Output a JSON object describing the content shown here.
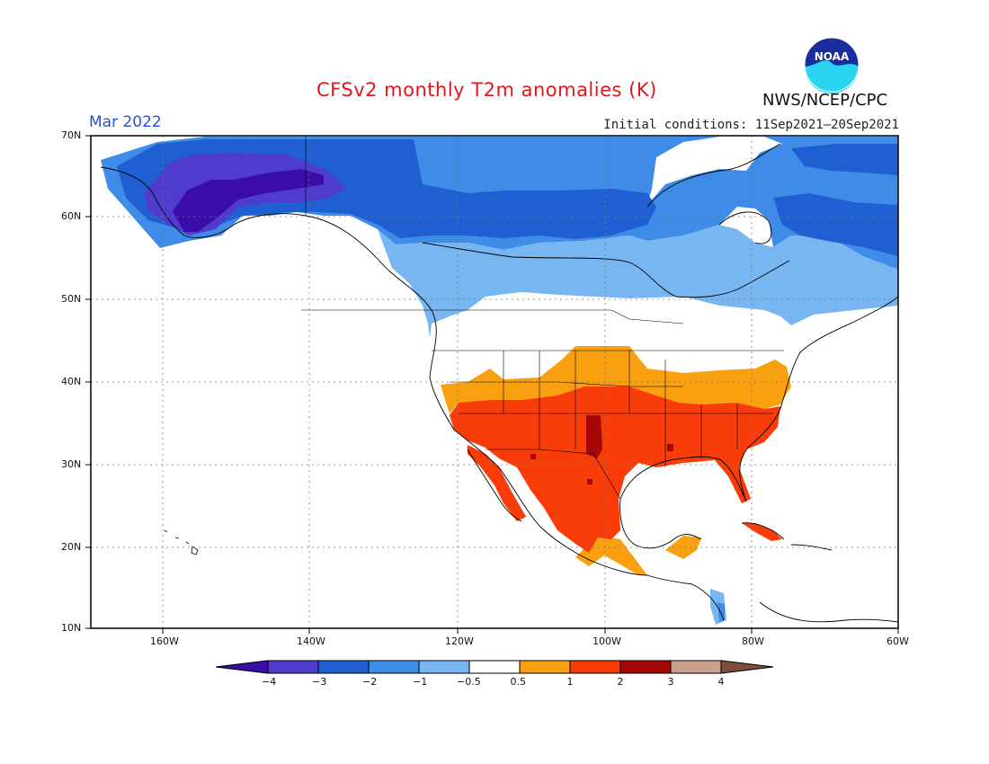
{
  "header": {
    "title": "CFSv2 monthly T2m anomalies (K)",
    "period": "Mar 2022",
    "initial_conditions": "Initial conditions: 11Sep2021–20Sep2021",
    "agency": "NWS/NCEP/CPC",
    "logo_text": "NOAA"
  },
  "axes": {
    "lat_labels": [
      "70N",
      "60N",
      "50N",
      "40N",
      "30N",
      "20N",
      "10N"
    ],
    "lon_labels": [
      "160W",
      "140W",
      "120W",
      "100W",
      "80W",
      "60W"
    ]
  },
  "legend": {
    "labels": [
      "−4",
      "−3",
      "−2",
      "−1",
      "−0.5",
      "0.5",
      "1",
      "2",
      "3",
      "4"
    ],
    "colors": [
      "#3a0da8",
      "#4f3ccf",
      "#1f5fd1",
      "#3e8ce8",
      "#78b6f2",
      "#ffffff",
      "#f8a010",
      "#f83c0a",
      "#a60808",
      "#c9a18a",
      "#7d4e3c"
    ]
  }
}
